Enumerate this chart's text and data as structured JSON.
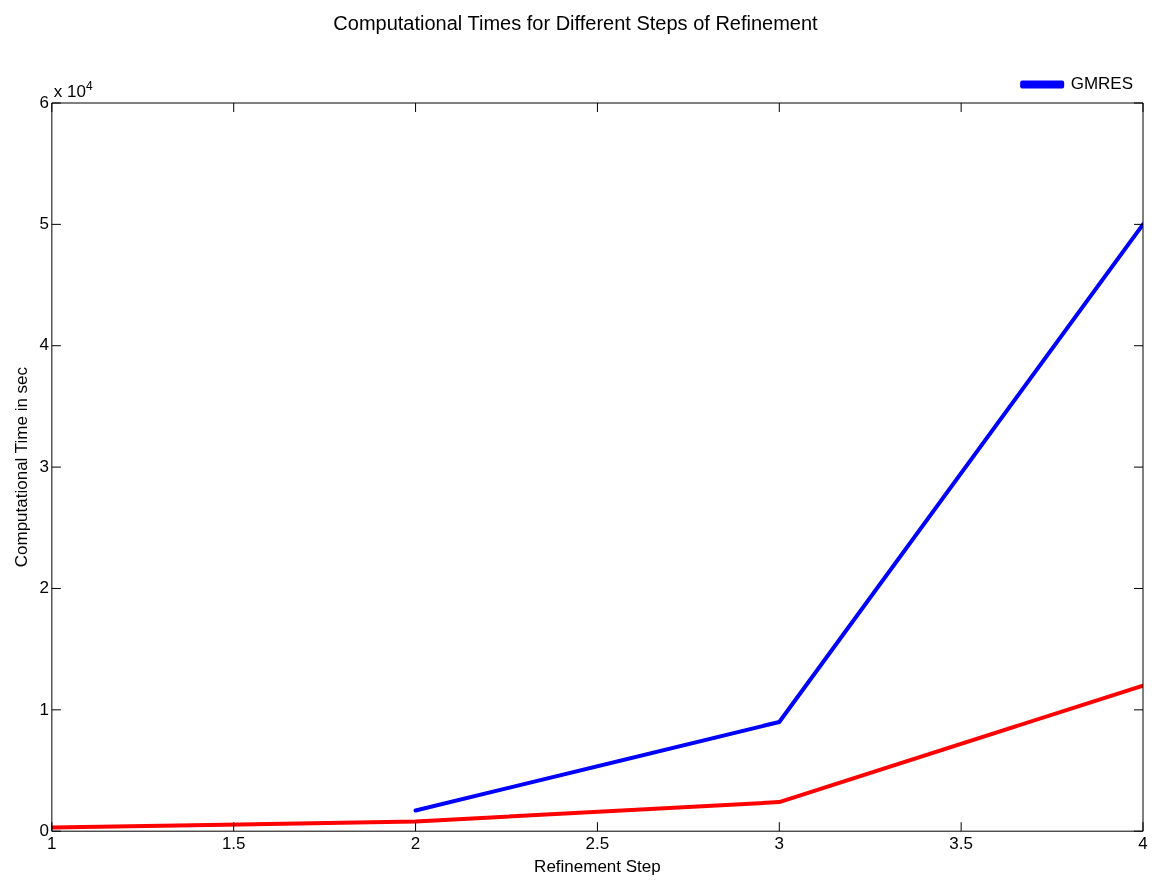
{
  "chart_data": {
    "type": "line",
    "title": "Computational Times for Different Steps of Refinement",
    "xlabel": "Refinement Step",
    "ylabel": "Computational Time in sec",
    "annotations": [
      "x 10$^{4}$"
    ],
    "x": [
      1,
      2,
      3,
      4
    ],
    "series": [
      {
        "color": "#ff0000",
        "values": [
          0.03,
          0.08,
          0.24,
          1.2
        ]
      },
      {
        "name": "GMRES",
        "color": "#0000ff",
        "values": [
          null,
          0.17,
          0.9,
          5.0
        ]
      }
    ],
    "xlim": [
      1,
      4
    ],
    "xticks": [
      1,
      1.5,
      2,
      2.5,
      3,
      3.5,
      4
    ],
    "ylim": [
      0,
      6
    ],
    "yticks": [
      0,
      1,
      2,
      3,
      4,
      5,
      6
    ],
    "grid": false,
    "legend": "top right",
    "marker": "none",
    "line_style": "solid"
  }
}
